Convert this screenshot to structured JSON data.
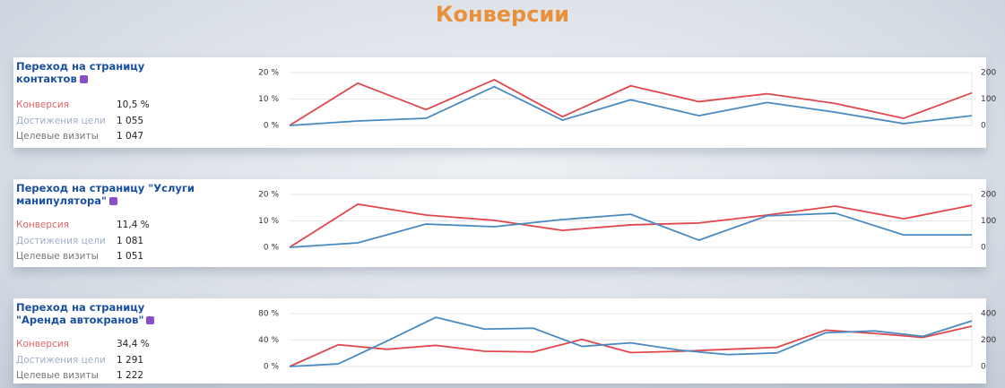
{
  "page_title": "Конверсии",
  "chart_data": [
    {
      "type": "line",
      "title": "Переход на страницу контактов",
      "stats": [
        {
          "label": "Конверсия",
          "value": "10,5 %"
        },
        {
          "label": "Достижения цели",
          "value": "1 055"
        },
        {
          "label": "Целевые визиты",
          "value": "1 047"
        }
      ],
      "categories": [
        null,
        null,
        null,
        null,
        null,
        null,
        null,
        null,
        null,
        null,
        null
      ],
      "series": [
        {
          "color": "#e0474c",
          "values": [
            0,
            16,
            6,
            17.3,
            3.3,
            15,
            9,
            12,
            8.3,
            2.7,
            12.3
          ]
        },
        {
          "color": "#4a8ac0",
          "axis": "y2",
          "values": [
            0,
            17,
            27,
            147,
            20,
            97,
            37,
            87,
            50,
            7,
            37
          ]
        }
      ],
      "ylim": [
        0,
        20
      ],
      "yticks": [
        {
          "value": 0,
          "label": "0 %"
        },
        {
          "value": 10,
          "label": "10 %"
        },
        {
          "value": 20,
          "label": "20 %"
        }
      ],
      "y2lim": [
        0,
        200
      ],
      "y2ticks": [
        0,
        100,
        200
      ],
      "grid": true
    },
    {
      "type": "line",
      "title": "Переход на страницу \"Услуги манипулятора\"",
      "stats": [
        {
          "label": "Конверсия",
          "value": "11,4 %"
        },
        {
          "label": "Достижения цели",
          "value": "1 081"
        },
        {
          "label": "Целевые визиты",
          "value": "1 051"
        }
      ],
      "categories": [
        null,
        null,
        null,
        null,
        null,
        null,
        null,
        null,
        null,
        null,
        null
      ],
      "series": [
        {
          "color": "#e0474c",
          "values": [
            0,
            16.3,
            12.2,
            10.2,
            6.4,
            8.5,
            9.2,
            12.2,
            15.6,
            10.8,
            15.9
          ]
        },
        {
          "color": "#4a8ac0",
          "axis": "y2",
          "values": [
            0,
            17,
            88,
            78,
            105,
            125,
            27,
            119,
            129,
            47,
            47
          ]
        }
      ],
      "ylim": [
        0,
        20
      ],
      "yticks": [
        {
          "value": 0,
          "label": "0 %"
        },
        {
          "value": 10,
          "label": "10 %"
        },
        {
          "value": 20,
          "label": "20 %"
        }
      ],
      "y2lim": [
        0,
        200
      ],
      "y2ticks": [
        0,
        100,
        200
      ],
      "grid": true
    },
    {
      "type": "line",
      "title": "Переход на страницу \"Аренда автокранов\"",
      "stats": [
        {
          "label": "Конверсия",
          "value": "34,4 %"
        },
        {
          "label": "Достижения цели",
          "value": "1 291"
        },
        {
          "label": "Целевые визиты",
          "value": "1 222"
        }
      ],
      "categories": [
        null,
        null,
        null,
        null,
        null,
        null,
        null,
        null,
        null,
        null,
        null,
        null,
        null,
        null,
        null
      ],
      "series": [
        {
          "color": "#e0474c",
          "values": [
            0,
            33,
            26,
            32,
            23,
            22,
            41,
            21,
            23,
            26,
            29,
            55,
            50,
            44,
            61
          ]
        },
        {
          "color": "#4a8ac0",
          "axis": "y2",
          "values": [
            0,
            20,
            193,
            372,
            283,
            290,
            152,
            179,
            124,
            90,
            103,
            255,
            269,
            228,
            345
          ]
        }
      ],
      "ylim": [
        0,
        80
      ],
      "yticks": [
        {
          "value": 0,
          "label": "0 %"
        },
        {
          "value": 40,
          "label": "40 %"
        },
        {
          "value": 80,
          "label": "80 %"
        }
      ],
      "y2lim": [
        0,
        400
      ],
      "y2ticks": [
        0,
        200,
        400
      ],
      "grid": true
    }
  ]
}
